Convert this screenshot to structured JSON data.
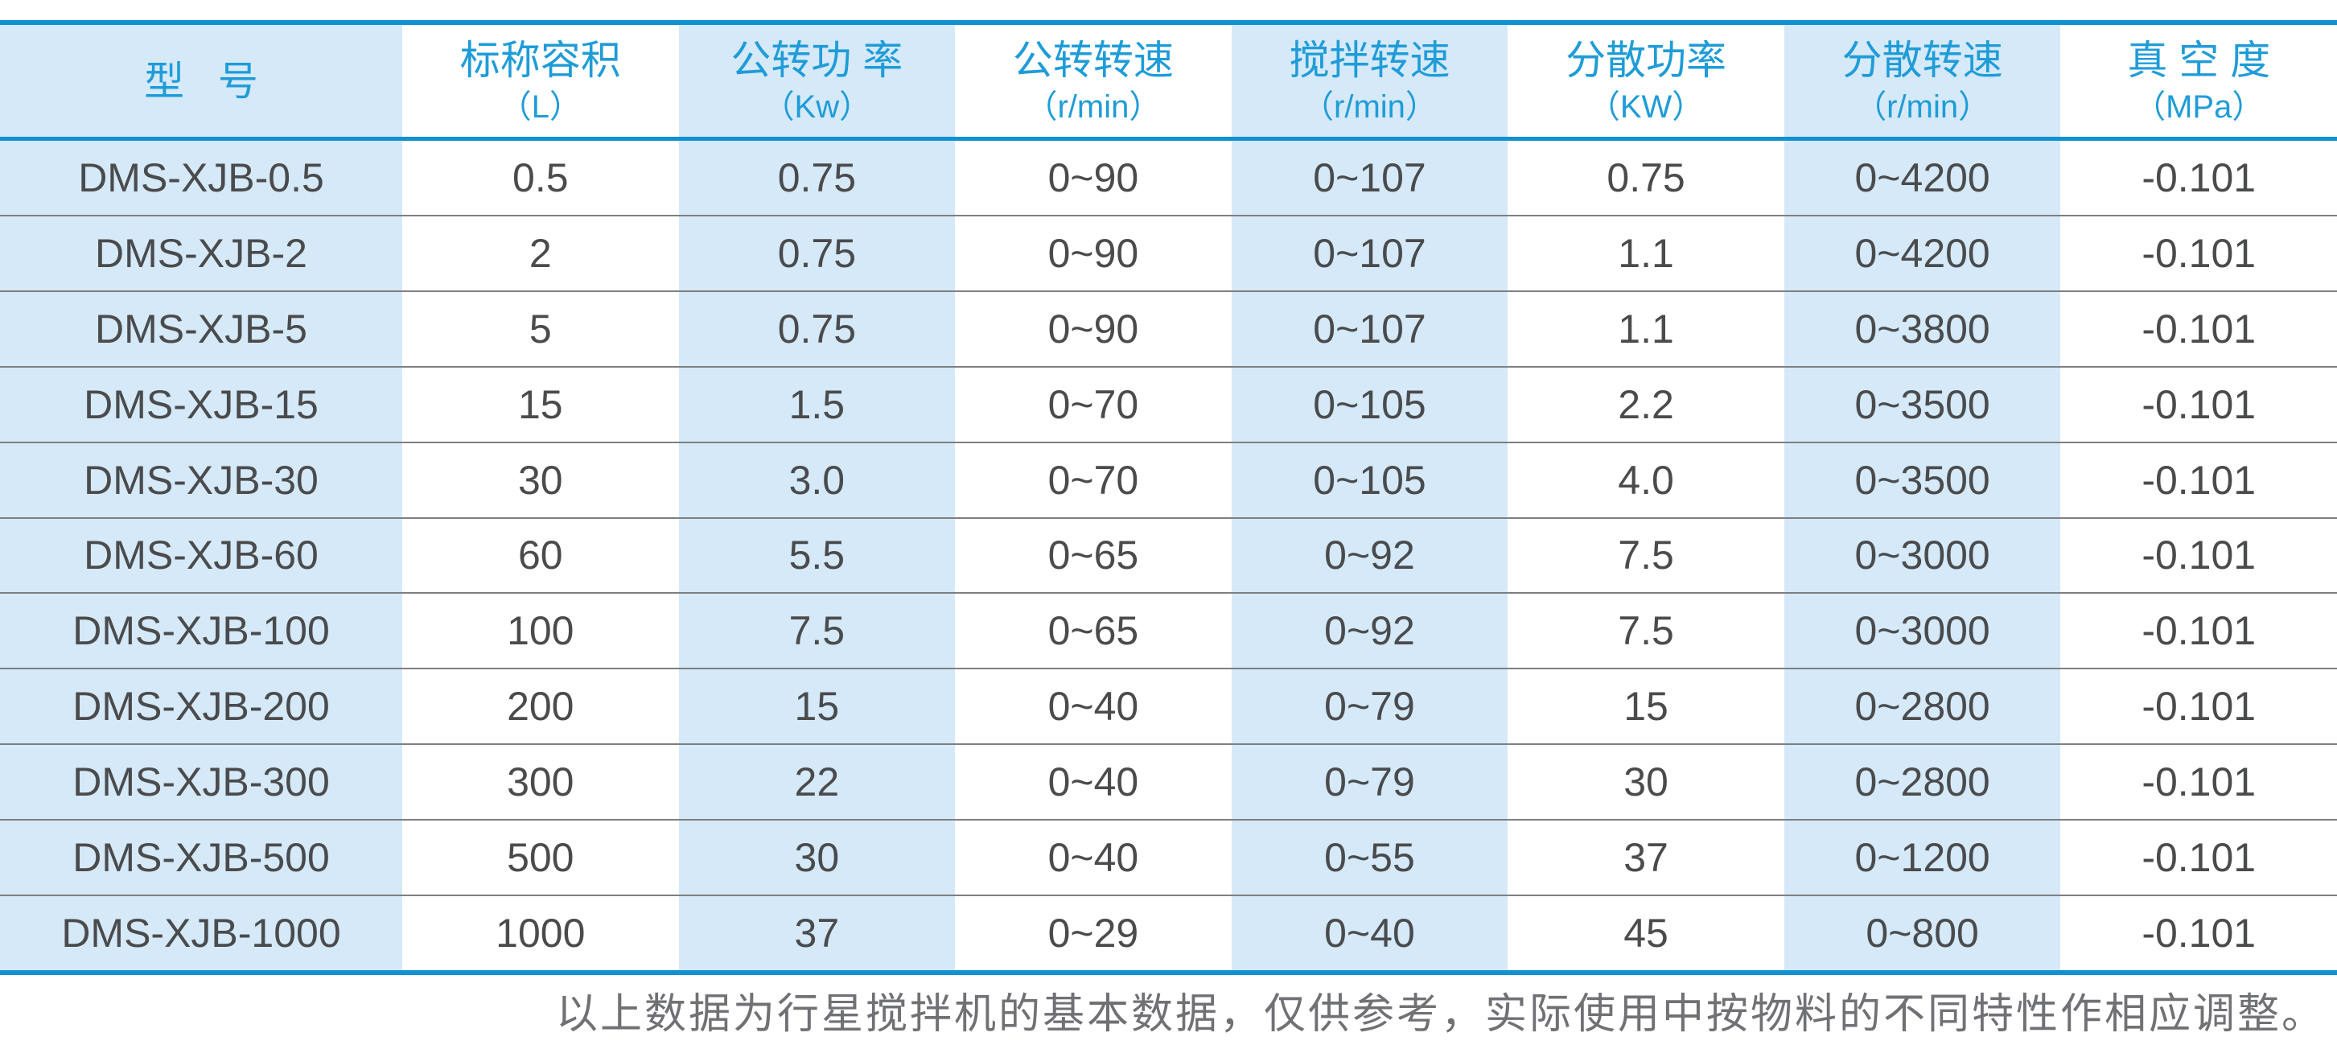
{
  "table": {
    "columns": [
      {
        "key": "model",
        "title": "型   号",
        "unit": ""
      },
      {
        "key": "nominal-capacity",
        "title": "标称容积",
        "unit": "（L）"
      },
      {
        "key": "revolution-power",
        "title": "公转功 率",
        "unit": "（Kw）"
      },
      {
        "key": "revolution-speed",
        "title": "公转转速",
        "unit": "（r/min）"
      },
      {
        "key": "stirring-speed",
        "title": "搅拌转速",
        "unit": "（r/min）"
      },
      {
        "key": "dispersion-power",
        "title": "分散功率",
        "unit": "（KW）"
      },
      {
        "key": "dispersion-speed",
        "title": "分散转速",
        "unit": "（r/min）"
      },
      {
        "key": "vacuum-degree",
        "title": "真 空 度",
        "unit": "（MPa）"
      }
    ],
    "rows": [
      [
        "DMS-XJB-0.5",
        "0.5",
        "0.75",
        "0~90",
        "0~107",
        "0.75",
        "0~4200",
        "-0.101"
      ],
      [
        "DMS-XJB-2",
        "2",
        "0.75",
        "0~90",
        "0~107",
        "1.1",
        "0~4200",
        "-0.101"
      ],
      [
        "DMS-XJB-5",
        "5",
        "0.75",
        "0~90",
        "0~107",
        "1.1",
        "0~3800",
        "-0.101"
      ],
      [
        "DMS-XJB-15",
        "15",
        "1.5",
        "0~70",
        "0~105",
        "2.2",
        "0~3500",
        "-0.101"
      ],
      [
        "DMS-XJB-30",
        "30",
        "3.0",
        "0~70",
        "0~105",
        "4.0",
        "0~3500",
        "-0.101"
      ],
      [
        "DMS-XJB-60",
        "60",
        "5.5",
        "0~65",
        "0~92",
        "7.5",
        "0~3000",
        "-0.101"
      ],
      [
        "DMS-XJB-100",
        "100",
        "7.5",
        "0~65",
        "0~92",
        "7.5",
        "0~3000",
        "-0.101"
      ],
      [
        "DMS-XJB-200",
        "200",
        "15",
        "0~40",
        "0~79",
        "15",
        "0~2800",
        "-0.101"
      ],
      [
        "DMS-XJB-300",
        "300",
        "22",
        "0~40",
        "0~79",
        "30",
        "0~2800",
        "-0.101"
      ],
      [
        "DMS-XJB-500",
        "500",
        "30",
        "0~40",
        "0~55",
        "37",
        "0~1200",
        "-0.101"
      ],
      [
        "DMS-XJB-1000",
        "1000",
        "37",
        "0~29",
        "0~40",
        "45",
        "0~800",
        "-0.101"
      ]
    ]
  },
  "footnote": "以上数据为行星搅拌机的基本数据，仅供参考，实际使用中按物料的不同特性作相应调整。",
  "colors": {
    "accent_blue_rule": "#1291d1",
    "header_text_blue": "#1f9cd8",
    "stripe_light_blue": "#d5e9f8",
    "body_text_gray": "#4a4b4d",
    "row_divider_gray": "#7e7f82",
    "footnote_gray": "#707174"
  },
  "chart_data": {
    "type": "table",
    "columns": [
      "型 号",
      "标称容积（L）",
      "公转功 率（Kw）",
      "公转转速（r/min）",
      "搅拌转速（r/min）",
      "分散功率（KW）",
      "分散转速（r/min）",
      "真 空 度（MPa）"
    ],
    "rows": [
      [
        "DMS-XJB-0.5",
        "0.5",
        "0.75",
        "0~90",
        "0~107",
        "0.75",
        "0~4200",
        "-0.101"
      ],
      [
        "DMS-XJB-2",
        "2",
        "0.75",
        "0~90",
        "0~107",
        "1.1",
        "0~4200",
        "-0.101"
      ],
      [
        "DMS-XJB-5",
        "5",
        "0.75",
        "0~90",
        "0~107",
        "1.1",
        "0~3800",
        "-0.101"
      ],
      [
        "DMS-XJB-15",
        "15",
        "1.5",
        "0~70",
        "0~105",
        "2.2",
        "0~3500",
        "-0.101"
      ],
      [
        "DMS-XJB-30",
        "30",
        "3.0",
        "0~70",
        "0~105",
        "4.0",
        "0~3500",
        "-0.101"
      ],
      [
        "DMS-XJB-60",
        "60",
        "5.5",
        "0~65",
        "0~92",
        "7.5",
        "0~3000",
        "-0.101"
      ],
      [
        "DMS-XJB-100",
        "100",
        "7.5",
        "0~65",
        "0~92",
        "7.5",
        "0~3000",
        "-0.101"
      ],
      [
        "DMS-XJB-200",
        "200",
        "15",
        "0~40",
        "0~79",
        "15",
        "0~2800",
        "-0.101"
      ],
      [
        "DMS-XJB-300",
        "300",
        "22",
        "0~40",
        "0~79",
        "30",
        "0~2800",
        "-0.101"
      ],
      [
        "DMS-XJB-500",
        "500",
        "30",
        "0~40",
        "0~55",
        "37",
        "0~1200",
        "-0.101"
      ],
      [
        "DMS-XJB-1000",
        "1000",
        "37",
        "0~29",
        "0~40",
        "45",
        "0~800",
        "-0.101"
      ]
    ]
  }
}
